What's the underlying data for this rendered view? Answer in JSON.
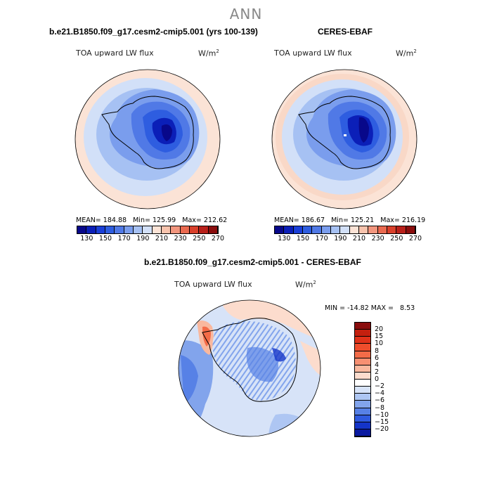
{
  "page": {
    "season": "ANN"
  },
  "chart_data": [
    {
      "type": "heatmap",
      "projection": "south-polar-stereographic",
      "title": "b.e21.B1850.f09_g17.cesm2-cmip5.001 (yrs 100-139)",
      "variable_label": "TOA upward LW flux",
      "units_label": "W/m",
      "units_exp": "2",
      "stats": {
        "mean": 184.88,
        "min": 125.99,
        "max": 212.62
      },
      "stats_text": {
        "mean_label": "MEAN=",
        "min_label": "Min=",
        "max_label": "Max="
      },
      "colorbar": {
        "orientation": "horizontal",
        "levels": [
          130,
          150,
          170,
          190,
          210,
          230,
          250,
          270
        ],
        "colors": [
          "#08088a",
          "#0b1fb8",
          "#1a3fd8",
          "#2e5de0",
          "#5079e6",
          "#7a9ded",
          "#a6c1f3",
          "#d2e0f8",
          "#fbe3d6",
          "#f7c3ad",
          "#f2967e",
          "#ea6a50",
          "#d9402b",
          "#b8201a",
          "#8a0d0d"
        ]
      }
    },
    {
      "type": "heatmap",
      "projection": "south-polar-stereographic",
      "title": "CERES-EBAF",
      "variable_label": "TOA upward LW flux",
      "units_label": "W/m",
      "units_exp": "2",
      "stats": {
        "mean": 186.67,
        "min": 125.21,
        "max": 216.19
      },
      "stats_text": {
        "mean_label": "MEAN=",
        "min_label": "Min=",
        "max_label": "Max="
      },
      "colorbar": {
        "orientation": "horizontal",
        "levels": [
          130,
          150,
          170,
          190,
          210,
          230,
          250,
          270
        ],
        "colors": [
          "#08088a",
          "#0b1fb8",
          "#1a3fd8",
          "#2e5de0",
          "#5079e6",
          "#7a9ded",
          "#a6c1f3",
          "#d2e0f8",
          "#fbe3d6",
          "#f7c3ad",
          "#f2967e",
          "#ea6a50",
          "#d9402b",
          "#b8201a",
          "#8a0d0d"
        ]
      }
    },
    {
      "type": "heatmap",
      "projection": "south-polar-stereographic",
      "title": "b.e21.B1850.f09_g17.cesm2-cmip5.001 - CERES-EBAF",
      "variable_label": "TOA upward LW flux",
      "units_label": "W/m",
      "units_exp": "2",
      "stats": {
        "min": -14.82,
        "max": 8.53
      },
      "stats_text": {
        "min_label": "MIN =",
        "max_label": "MAX ="
      },
      "colorbar": {
        "orientation": "vertical",
        "levels": [
          20,
          15,
          10,
          8,
          6,
          4,
          2,
          0,
          -2,
          -4,
          -6,
          -8,
          -10,
          -15,
          -20
        ],
        "colors": [
          "#8a0d0d",
          "#c4200f",
          "#e0321a",
          "#ef4d2c",
          "#f36b48",
          "#f79072",
          "#f9b89e",
          "#fcdccd",
          "#ffffff",
          "#d7e3f8",
          "#aec6f3",
          "#82a4ec",
          "#5781e6",
          "#2f5adf",
          "#1434c8",
          "#0a1aa0"
        ]
      }
    }
  ]
}
